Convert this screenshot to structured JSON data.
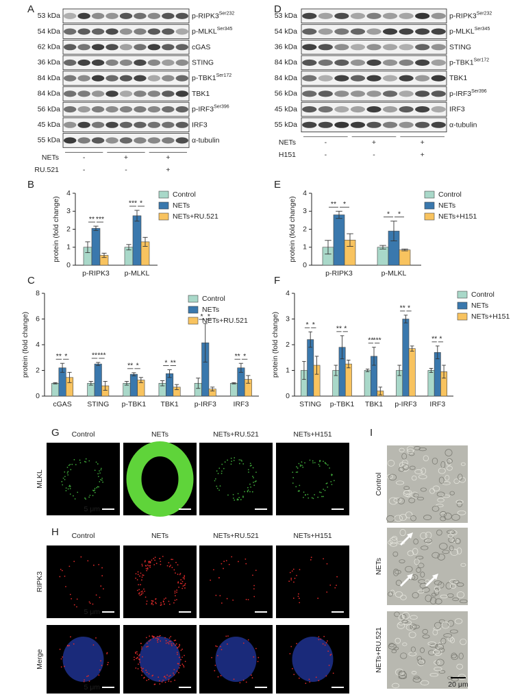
{
  "panel_labels": [
    "A",
    "B",
    "C",
    "D",
    "E",
    "F",
    "G",
    "H",
    "I"
  ],
  "blot_a": {
    "kda": [
      "53 kDa",
      "54 kDa",
      "62 kDa",
      "36 kDa",
      "84 kDa",
      "84 kDa",
      "56 kDa",
      "45 kDa",
      "55 kDa"
    ],
    "proteins": [
      {
        "name": "p-RIPK3",
        "site": "Ser232"
      },
      {
        "name": "p-MLKL",
        "site": "Ser345"
      },
      {
        "name": "cGAS"
      },
      {
        "name": "STING"
      },
      {
        "name": "p-TBK1",
        "site": "Ser172"
      },
      {
        "name": "TBK1"
      },
      {
        "name": "p-IRF3",
        "site": "Ser396"
      },
      {
        "name": "IRF3"
      },
      {
        "name": "α-tubulin"
      }
    ],
    "conditions": [
      {
        "name": "NETs",
        "signs": [
          "-",
          "+",
          "+"
        ]
      },
      {
        "name": "RU.521",
        "signs": [
          "-",
          "-",
          "+"
        ]
      }
    ]
  },
  "blot_d": {
    "kda": [
      "53 kDa",
      "54 kDa",
      "36 kDa",
      "84 kDa",
      "84 kDa",
      "56 kDa",
      "45 kDa",
      "55 kDa"
    ],
    "proteins": [
      {
        "name": "p-RIPK3",
        "site": "Ser232"
      },
      {
        "name": "p-MLKL",
        "site": "Ser345"
      },
      {
        "name": "STING"
      },
      {
        "name": "p-TBK1",
        "site": "Ser172"
      },
      {
        "name": "TBK1"
      },
      {
        "name": "p-IRF3",
        "site": "Ser396"
      },
      {
        "name": "IRF3"
      },
      {
        "name": "α-tubulin"
      }
    ],
    "conditions": [
      {
        "name": "NETs",
        "signs": [
          "-",
          "+",
          "+"
        ]
      },
      {
        "name": "H151",
        "signs": [
          "-",
          "-",
          "+"
        ]
      }
    ]
  },
  "chart_data": [
    {
      "type": "bar",
      "ylabel": "protein (fold change)",
      "categories": [
        "p-RIPK3",
        "p-MLKL"
      ],
      "series": [
        {
          "name": "Control",
          "color": "#a9d8c9",
          "values": [
            1,
            1
          ],
          "errors": [
            0.3,
            0.15
          ]
        },
        {
          "name": "NETs",
          "color": "#3a78ad",
          "values": [
            2.05,
            2.75
          ],
          "errors": [
            0.12,
            0.3
          ]
        },
        {
          "name": "NETs+RU.521",
          "color": "#f8c35f",
          "values": [
            0.55,
            1.3
          ],
          "errors": [
            0.12,
            0.25
          ]
        }
      ],
      "significance": [
        [
          "**",
          "***"
        ],
        [
          "***",
          "*"
        ]
      ],
      "ylim": [
        0,
        4
      ],
      "yticks": [
        0,
        1,
        2,
        3,
        4
      ]
    },
    {
      "type": "bar",
      "ylabel": "protein (fold change)",
      "categories": [
        "cGAS",
        "STING",
        "p-TBK1",
        "TBK1",
        "p-IRF3",
        "IRF3"
      ],
      "series": [
        {
          "name": "Control",
          "color": "#a9d8c9",
          "values": [
            1,
            1,
            1,
            1,
            1,
            1
          ],
          "errors": [
            0.05,
            0.15,
            0.15,
            0.2,
            0.4,
            0.05
          ]
        },
        {
          "name": "NETs",
          "color": "#3a78ad",
          "values": [
            2.2,
            2.5,
            1.7,
            1.75,
            4.15,
            2.2
          ],
          "errors": [
            0.35,
            0.12,
            0.12,
            0.3,
            1.5,
            0.35
          ]
        },
        {
          "name": "NETs+RU.521",
          "color": "#f8c35f",
          "values": [
            1.45,
            0.8,
            1.25,
            0.7,
            0.55,
            1.3
          ],
          "errors": [
            0.4,
            0.35,
            0.2,
            0.2,
            0.15,
            0.3
          ]
        }
      ],
      "significance": [
        [
          "**",
          "*"
        ],
        [
          "**",
          "***"
        ],
        [
          "**",
          "*"
        ],
        [
          "*",
          "**"
        ],
        [
          "*",
          "*"
        ],
        [
          "**",
          "*"
        ]
      ],
      "ylim": [
        0,
        8
      ],
      "yticks": [
        0,
        2,
        4,
        6,
        8
      ]
    },
    {
      "type": "bar",
      "ylabel": "protein (fold change)",
      "categories": [
        "p-RIPK3",
        "p-MLKL"
      ],
      "series": [
        {
          "name": "Control",
          "color": "#a9d8c9",
          "values": [
            1,
            1
          ],
          "errors": [
            0.38,
            0.1
          ]
        },
        {
          "name": "NETs",
          "color": "#3a78ad",
          "values": [
            2.8,
            1.9
          ],
          "errors": [
            0.2,
            0.55
          ]
        },
        {
          "name": "NETs+H151",
          "color": "#f8c35f",
          "values": [
            1.4,
            0.85
          ],
          "errors": [
            0.35,
            0.05
          ]
        }
      ],
      "significance": [
        [
          "**",
          "*"
        ],
        [
          "*",
          "*"
        ]
      ],
      "ylim": [
        0,
        4
      ],
      "yticks": [
        0,
        1,
        2,
        3,
        4
      ]
    },
    {
      "type": "bar",
      "ylabel": "protein (fold change)",
      "categories": [
        "STING",
        "p-TBK1",
        "TBK1",
        "p-IRF3",
        "IRF3"
      ],
      "series": [
        {
          "name": "Control",
          "color": "#a9d8c9",
          "values": [
            1,
            1,
            1,
            1,
            1
          ],
          "errors": [
            0.35,
            0.2,
            0.05,
            0.2,
            0.08
          ]
        },
        {
          "name": "NETs",
          "color": "#3a78ad",
          "values": [
            2.2,
            1.9,
            1.55,
            3.0,
            1.7
          ],
          "errors": [
            0.3,
            0.45,
            0.35,
            0.15,
            0.25
          ]
        },
        {
          "name": "NETs+H151",
          "color": "#f8c35f",
          "values": [
            1.2,
            1.25,
            0.2,
            1.85,
            0.95
          ],
          "errors": [
            0.35,
            0.15,
            0.15,
            0.1,
            0.25
          ]
        }
      ],
      "significance": [
        [
          "*",
          "*"
        ],
        [
          "**",
          "*"
        ],
        [
          "**",
          "***"
        ],
        [
          "**",
          "*"
        ],
        [
          "**",
          "*"
        ]
      ],
      "ylim": [
        0,
        4
      ],
      "yticks": [
        0,
        1,
        2,
        3,
        4
      ]
    }
  ],
  "microscopy_g": {
    "columns": [
      "Control",
      "NETs",
      "NETs+RU.521",
      "NETs+H151"
    ],
    "rows": [
      "MLKL"
    ],
    "scale_bars": [
      "5 μm"
    ]
  },
  "microscopy_h": {
    "columns": [
      "Control",
      "NETs",
      "NETs+RU.521",
      "NETs+H151"
    ],
    "rows": [
      "RIPK3",
      "Merge"
    ],
    "scale_bars": [
      "5 μm",
      "5 μm"
    ]
  },
  "microscopy_i": {
    "rows": [
      "Control",
      "NETs",
      "NETs+RU.521"
    ],
    "scale_bar": "20 μm"
  }
}
